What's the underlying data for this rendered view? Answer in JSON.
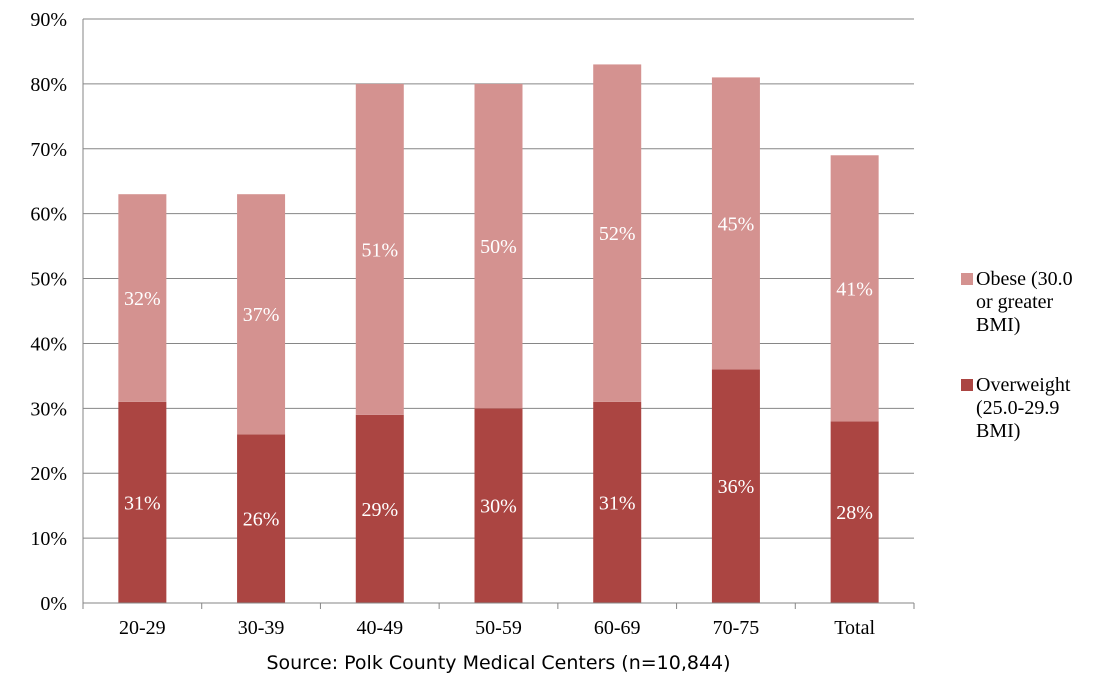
{
  "chart_data": {
    "type": "bar",
    "stacked": true,
    "categories": [
      "20-29",
      "30-39",
      "40-49",
      "50-59",
      "60-69",
      "70-75",
      "Total"
    ],
    "series": [
      {
        "name": "Overweight (25.0-29.9 BMI)",
        "values": [
          31,
          26,
          29,
          30,
          31,
          36,
          28
        ],
        "labels": [
          "31%",
          "26%",
          "29%",
          "30%",
          "31%",
          "36%",
          "28%"
        ],
        "color": "#ab4542"
      },
      {
        "name": "Obese (30.0 or greater BMI)",
        "values": [
          32,
          37,
          51,
          50,
          52,
          45,
          41
        ],
        "labels": [
          "32%",
          "37%",
          "51%",
          "50%",
          "52%",
          "45%",
          "41%"
        ],
        "color": "#d49290"
      }
    ],
    "ylim": [
      0,
      90
    ],
    "y_ticks": [
      0,
      10,
      20,
      30,
      40,
      50,
      60,
      70,
      80,
      90
    ],
    "y_tick_labels": [
      "0%",
      "10%",
      "20%",
      "30%",
      "40%",
      "50%",
      "60%",
      "70%",
      "80%",
      "90%"
    ],
    "xlabel": "Source: Polk County Medical Centers (n=10,844)",
    "ylabel": "",
    "title": "",
    "grid": true,
    "legend": {
      "position": "right",
      "entries": [
        {
          "series": "Obese (30.0 or greater BMI)",
          "lines": [
            "Obese (30.0",
            "or greater",
            "BMI)"
          ]
        },
        {
          "series": "Overweight (25.0-29.9 BMI)",
          "lines": [
            "Overweight",
            "(25.0-29.9",
            "BMI)"
          ]
        }
      ]
    }
  }
}
